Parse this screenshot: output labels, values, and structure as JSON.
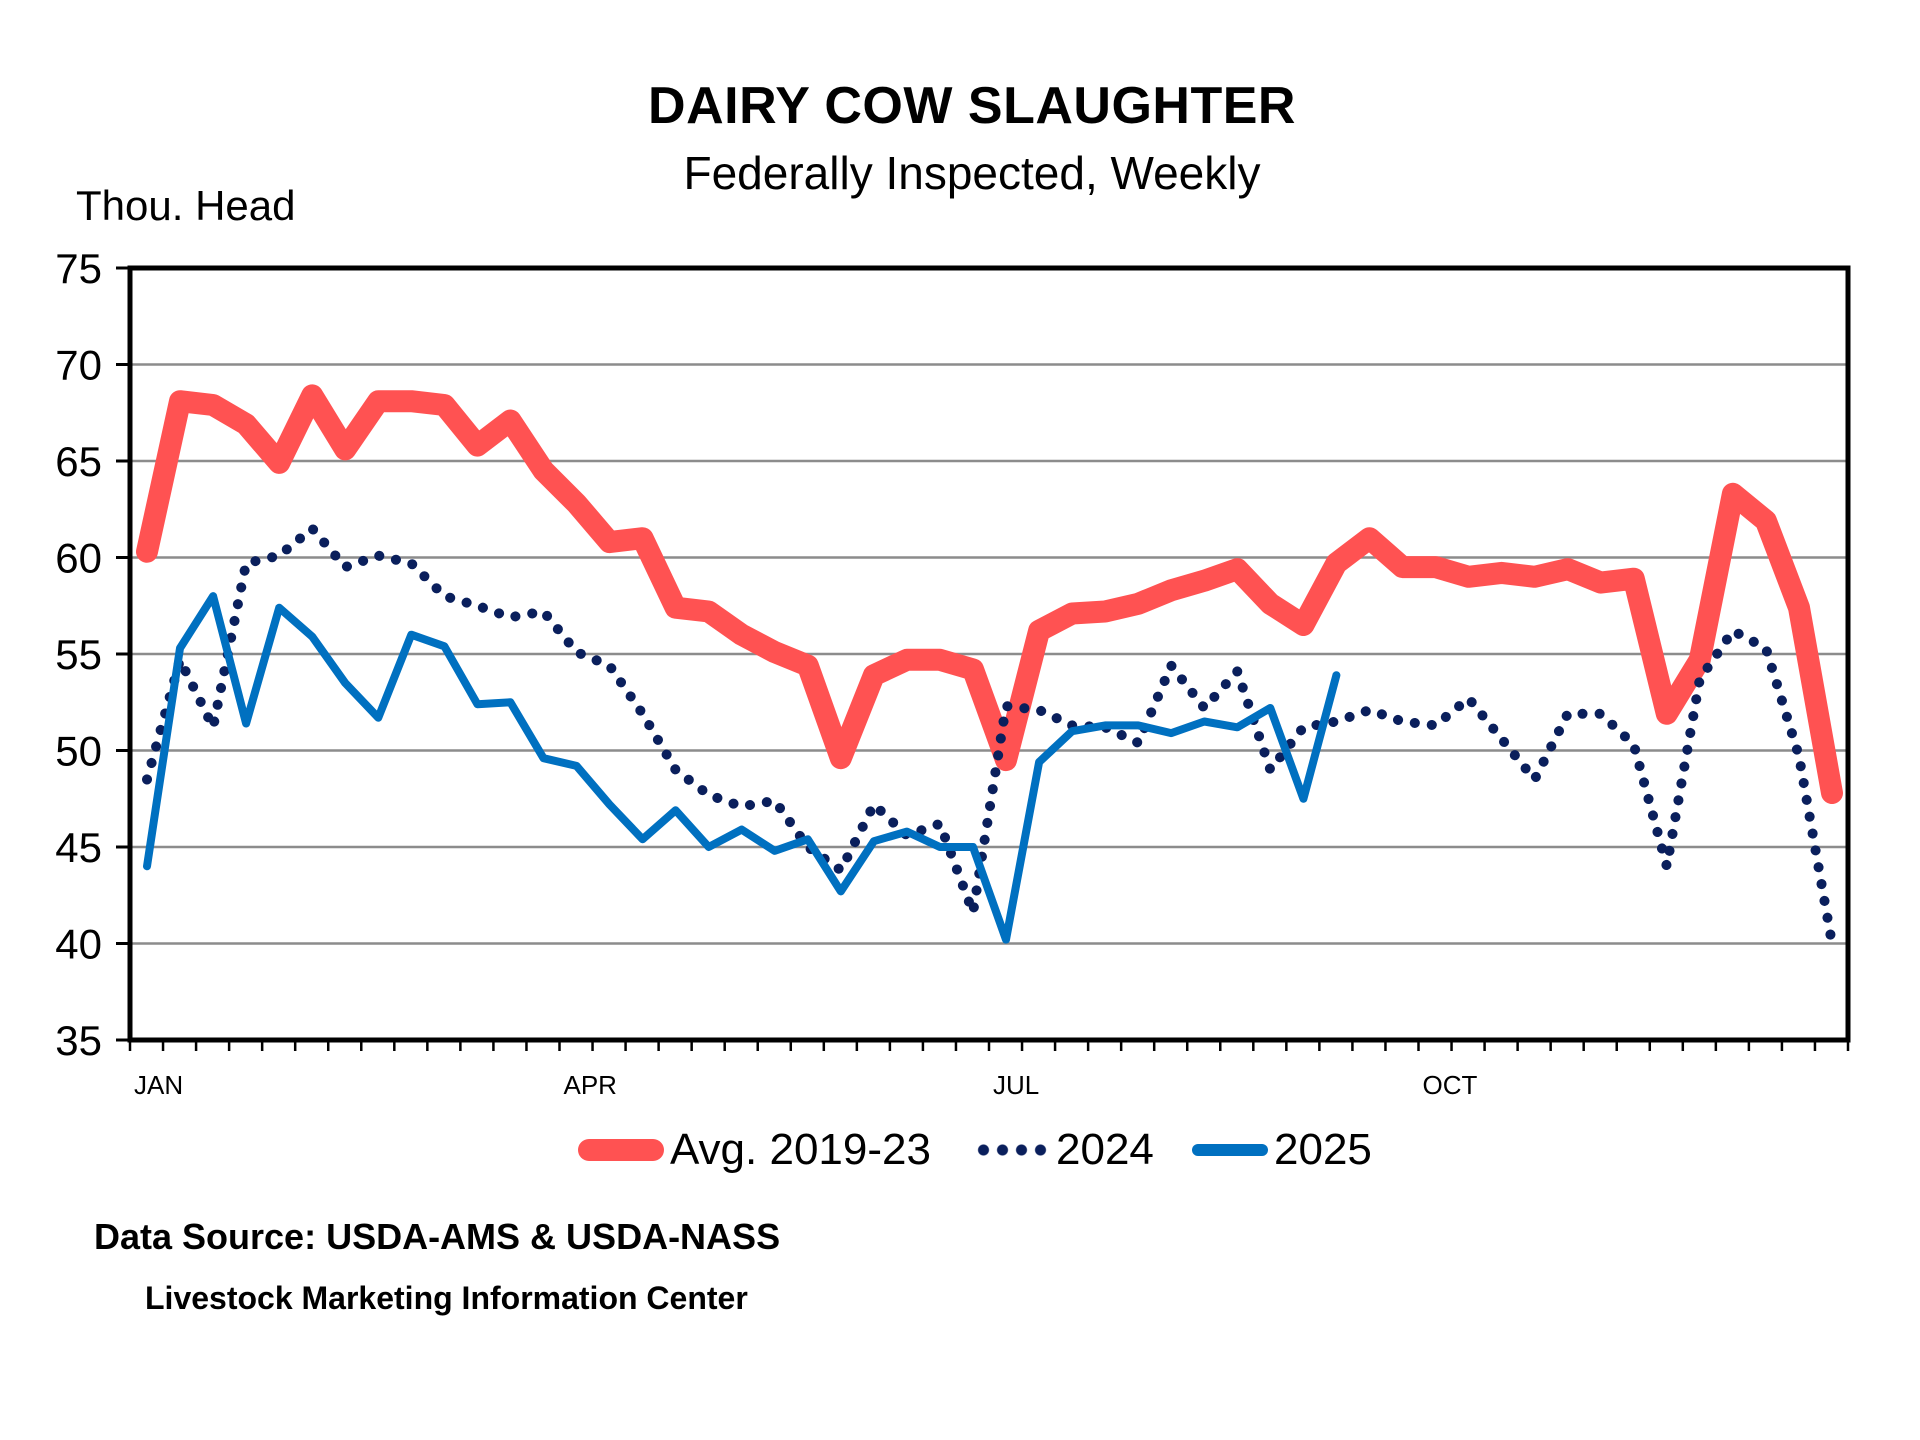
{
  "header": {
    "title": "DAIRY COW SLAUGHTER",
    "subtitle": "Federally Inspected, Weekly",
    "y_unit_label": "Thou. Head"
  },
  "footer": {
    "source": "Data Source:  USDA-AMS & USDA-NASS",
    "center": "Livestock Marketing Information Center"
  },
  "legend": [
    {
      "label": "Avg. 2019-23",
      "color": "#FF5252",
      "style": "thick-solid"
    },
    {
      "label": "2024",
      "color": "#0A1F5C",
      "style": "dotted"
    },
    {
      "label": "2025",
      "color": "#0070C0",
      "style": "solid"
    }
  ],
  "chart_data": {
    "type": "line",
    "title": "DAIRY COW SLAUGHTER",
    "subtitle": "Federally Inspected, Weekly",
    "xlabel": "",
    "ylabel": "Thou. Head",
    "ylim": [
      35,
      75
    ],
    "yticks": [
      35,
      40,
      45,
      50,
      55,
      60,
      65,
      70,
      75
    ],
    "x_unit": "week of year",
    "x_range": [
      1,
      52
    ],
    "xtick_labels": [
      {
        "label": "JAN",
        "week": 1
      },
      {
        "label": "APR",
        "week": 14
      },
      {
        "label": "JUL",
        "week": 27
      },
      {
        "label": "OCT",
        "week": 40
      }
    ],
    "grid": "horizontal",
    "legend_position": "bottom",
    "series": [
      {
        "name": "Avg. 2019-23",
        "color": "#FF5252",
        "values": [
          60.3,
          68.1,
          67.9,
          66.9,
          64.9,
          68.4,
          65.6,
          68.1,
          68.1,
          67.9,
          65.8,
          67.1,
          64.5,
          62.8,
          60.8,
          61.0,
          57.4,
          57.2,
          56.0,
          55.1,
          54.4,
          49.6,
          53.9,
          54.7,
          54.7,
          54.2,
          49.5,
          56.2,
          57.1,
          57.2,
          57.6,
          58.3,
          58.8,
          59.4,
          57.6,
          56.5,
          59.7,
          61.0,
          59.5,
          59.5,
          59.0,
          59.2,
          59.0,
          59.4,
          58.7,
          58.9,
          51.9,
          54.7,
          63.3,
          61.9,
          57.4,
          47.8
        ]
      },
      {
        "name": "2024",
        "color": "#0A1F5C",
        "values": [
          48.5,
          54.7,
          51.2,
          59.7,
          60.1,
          61.5,
          59.5,
          60.1,
          59.7,
          58.0,
          57.5,
          56.9,
          57.2,
          55.1,
          54.4,
          51.9,
          49.0,
          47.7,
          47.1,
          47.4,
          45.0,
          43.8,
          47.2,
          45.6,
          46.2,
          41.6,
          52.3,
          52.1,
          51.3,
          51.2,
          50.4,
          54.4,
          52.2,
          54.1,
          49.0,
          51.2,
          51.5,
          52.1,
          51.5,
          51.3,
          52.7,
          50.6,
          48.5,
          51.9,
          51.9,
          50.3,
          44.0,
          53.7,
          56.2,
          55.3,
          49.7,
          40.0
        ]
      },
      {
        "name": "2025",
        "color": "#0070C0",
        "values": [
          44.0,
          55.3,
          58.0,
          51.4,
          57.4,
          55.9,
          53.5,
          51.7,
          56.0,
          55.4,
          52.4,
          52.5,
          49.6,
          49.2,
          47.2,
          45.4,
          46.9,
          45.0,
          45.9,
          44.8,
          45.4,
          42.7,
          45.3,
          45.8,
          45.0,
          45.0,
          40.2,
          49.4,
          51.0,
          51.3,
          51.3,
          50.9,
          51.5,
          51.2,
          52.2,
          47.5,
          53.9
        ]
      }
    ]
  }
}
